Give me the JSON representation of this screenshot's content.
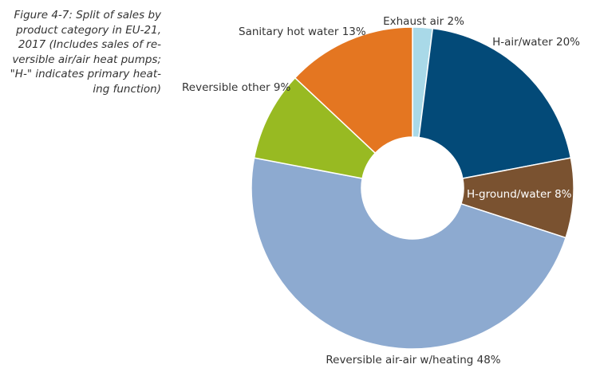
{
  "chart_data": {
    "type": "pie",
    "title_lines": [
      "Figure 4-7:   Split of sales by",
      "product category in EU-21,",
      "2017 (Includes sales of re-",
      "versible air/air heat pumps;",
      "\"H-\" indicates primary heat-",
      "ing function)"
    ],
    "slices": [
      {
        "label": "Exhaust air 2%",
        "value": 2,
        "color": "#a9d9e8"
      },
      {
        "label": "H-air/water 20%",
        "value": 20,
        "color": "#034a78"
      },
      {
        "label": "H-ground/water 8%",
        "value": 8,
        "color": "#7a5230"
      },
      {
        "label": "Reversible air-air w/heating 48%",
        "value": 48,
        "color": "#8daad0"
      },
      {
        "label": "Reversible other 9%",
        "value": 9,
        "color": "#98ba22"
      },
      {
        "label": "Sanitary hot water 13%",
        "value": 13,
        "color": "#e47621"
      }
    ],
    "donut": true,
    "start": "top, clockwise"
  }
}
